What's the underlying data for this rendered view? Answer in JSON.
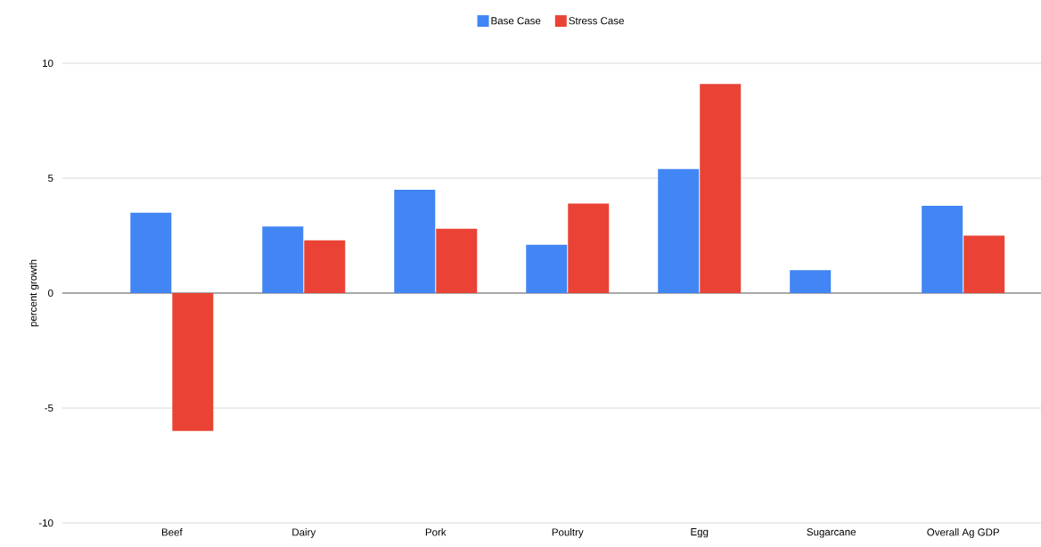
{
  "chart_data": {
    "type": "bar",
    "ylabel": "percent growth",
    "categories": [
      "Beef",
      "Dairy",
      "Pork",
      "Poultry",
      "Egg",
      "Sugarcane",
      "Overall Ag GDP"
    ],
    "series": [
      {
        "name": "Base Case",
        "color": "#4285f4",
        "values": [
          3.5,
          2.9,
          4.5,
          2.1,
          5.4,
          1.0,
          3.8
        ]
      },
      {
        "name": "Stress Case",
        "color": "#ea4335",
        "values": [
          -6.0,
          2.3,
          2.8,
          3.9,
          9.1,
          null,
          2.5
        ]
      }
    ],
    "ylim": [
      -10,
      10
    ],
    "yticks": [
      -10,
      -5,
      0,
      5,
      10
    ],
    "grid": "y",
    "legend": "top"
  }
}
